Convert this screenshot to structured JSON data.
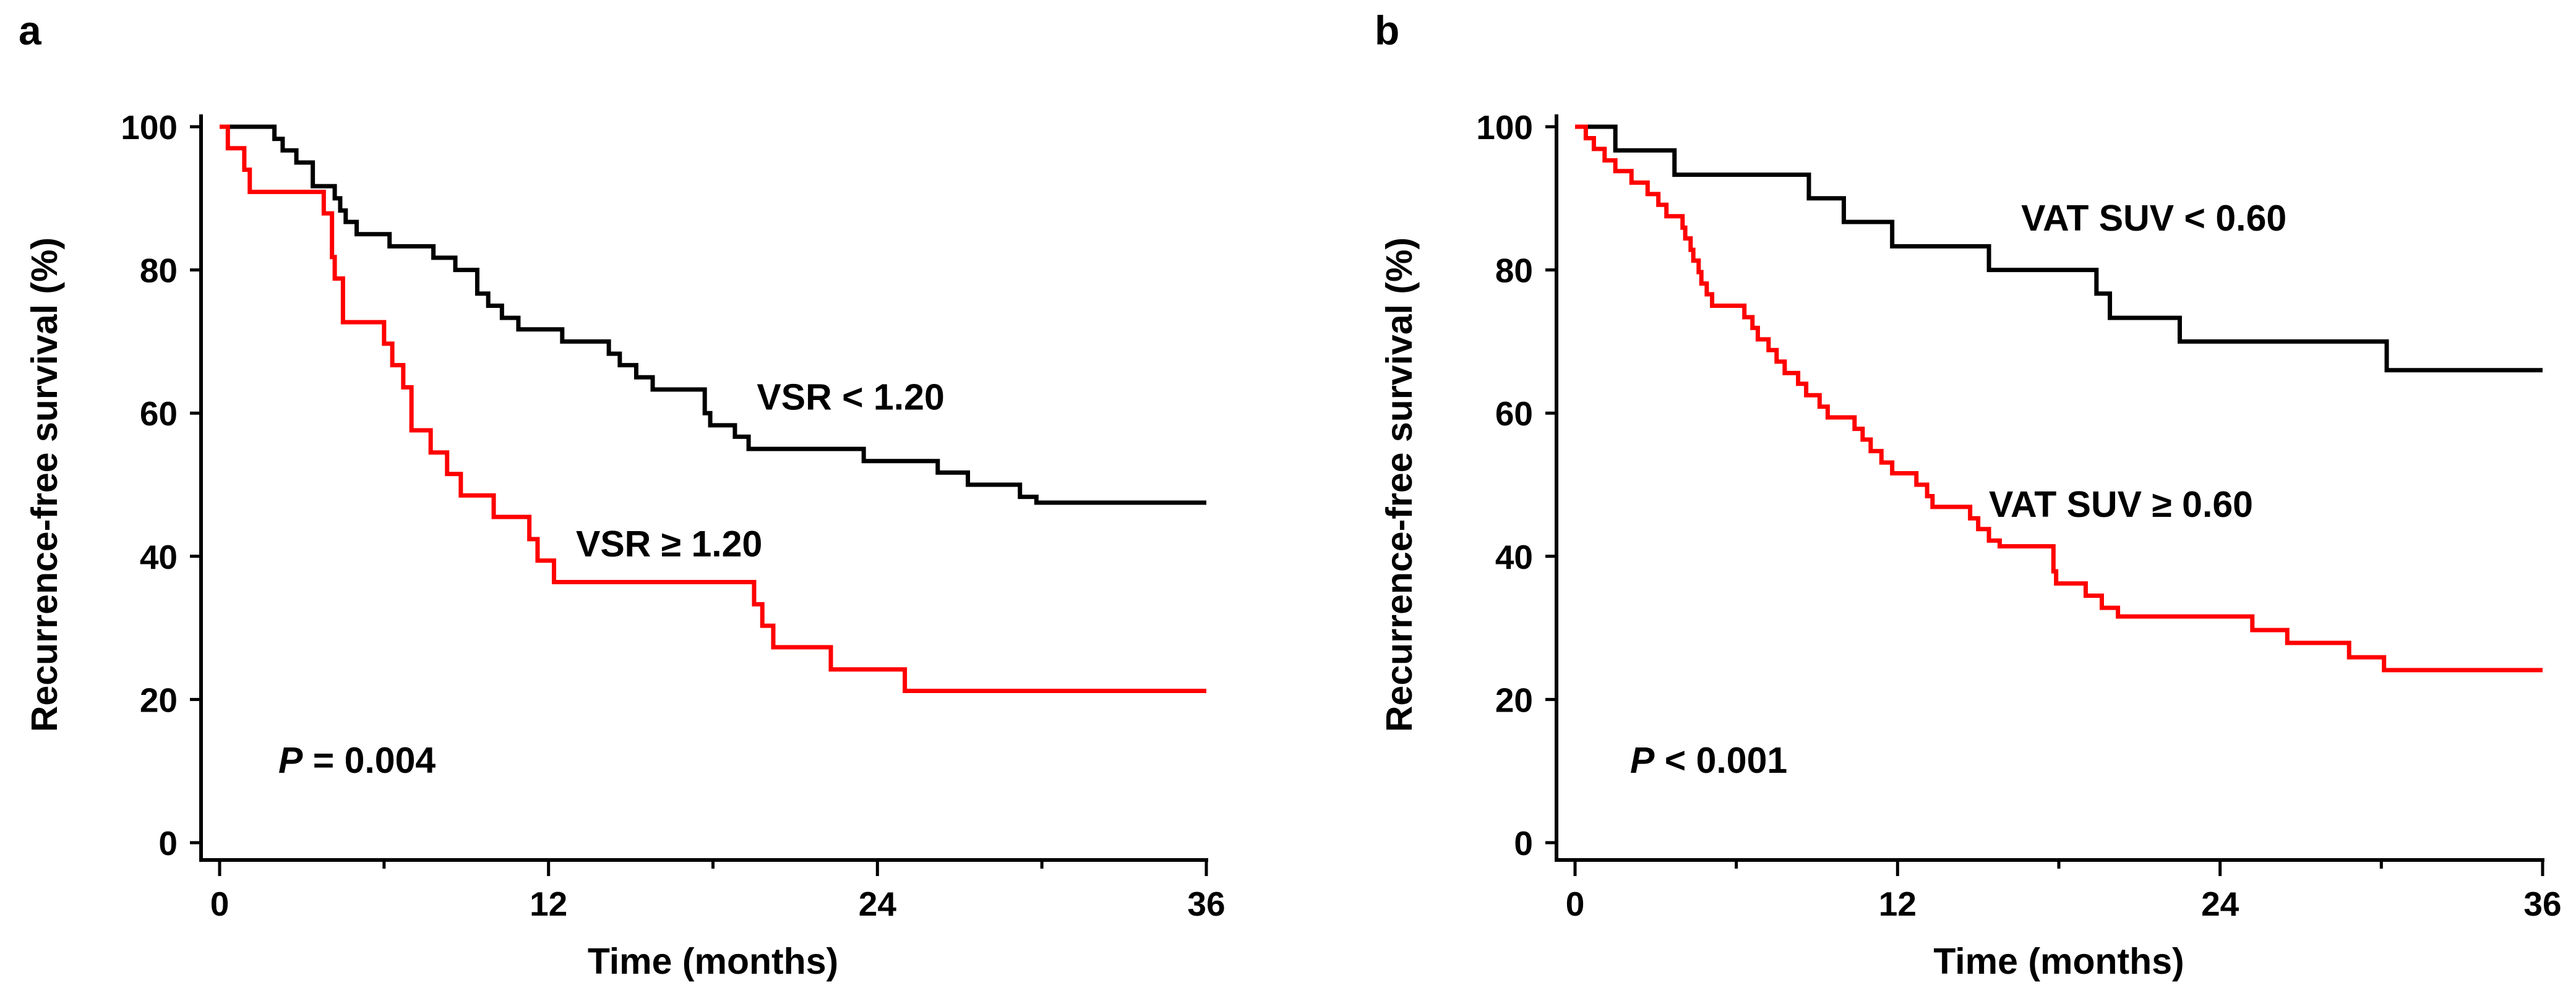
{
  "chart_data": [
    {
      "type": "line",
      "panel_label": "a",
      "title": "",
      "xlabel": "Time (months)",
      "ylabel": "Recurrence-free survival (%)",
      "xlim": [
        0,
        36
      ],
      "ylim": [
        0,
        100
      ],
      "xticks": [
        0,
        12,
        24,
        36
      ],
      "yticks": [
        0,
        20,
        40,
        60,
        80,
        100
      ],
      "grid": false,
      "p_value_label": "P",
      "p_value_text": " = 0.004",
      "series": [
        {
          "name": "VSR < 1.20",
          "color": "#000000",
          "points": [
            [
              0,
              100
            ],
            [
              1.7,
              100
            ],
            [
              2.0,
              98.3
            ],
            [
              2.3,
              96.7
            ],
            [
              2.8,
              95.0
            ],
            [
              3.4,
              91.7
            ],
            [
              4.2,
              90.0
            ],
            [
              4.4,
              88.3
            ],
            [
              4.6,
              86.7
            ],
            [
              5.0,
              85.0
            ],
            [
              6.2,
              83.3
            ],
            [
              7.8,
              81.7
            ],
            [
              8.6,
              80.0
            ],
            [
              9.4,
              76.7
            ],
            [
              9.8,
              75.0
            ],
            [
              10.3,
              73.3
            ],
            [
              10.9,
              71.7
            ],
            [
              12.5,
              70.0
            ],
            [
              14.2,
              68.3
            ],
            [
              14.6,
              66.7
            ],
            [
              15.2,
              65.0
            ],
            [
              15.8,
              63.3
            ],
            [
              17.7,
              60.0
            ],
            [
              17.9,
              58.3
            ],
            [
              18.8,
              56.7
            ],
            [
              19.3,
              55.0
            ],
            [
              23.5,
              53.3
            ],
            [
              26.2,
              51.7
            ],
            [
              27.3,
              50.0
            ],
            [
              29.2,
              48.3
            ],
            [
              29.8,
              47.5
            ],
            [
              36,
              47.5
            ]
          ]
        },
        {
          "name": "VSR ≥ 1.20",
          "color": "#ff0000",
          "points": [
            [
              0,
              100
            ],
            [
              0.3,
              97.0
            ],
            [
              0.9,
              94.0
            ],
            [
              1.1,
              90.9
            ],
            [
              3.8,
              87.9
            ],
            [
              4.1,
              81.8
            ],
            [
              4.2,
              78.8
            ],
            [
              4.5,
              72.7
            ],
            [
              6.0,
              69.7
            ],
            [
              6.3,
              66.7
            ],
            [
              6.7,
              63.6
            ],
            [
              7.0,
              57.6
            ],
            [
              7.7,
              54.5
            ],
            [
              8.3,
              51.5
            ],
            [
              8.8,
              48.5
            ],
            [
              10.0,
              45.5
            ],
            [
              11.3,
              42.4
            ],
            [
              11.6,
              39.4
            ],
            [
              12.2,
              36.4
            ],
            [
              19.5,
              33.3
            ],
            [
              19.8,
              30.3
            ],
            [
              20.2,
              27.3
            ],
            [
              22.3,
              24.2
            ],
            [
              25.0,
              21.2
            ],
            [
              36,
              21.2
            ]
          ]
        }
      ],
      "annotations": [
        {
          "text": "VSR < 1.20",
          "x": 19.6,
          "y": 60.5
        },
        {
          "text": "VSR ≥ 1.20",
          "x": 13.0,
          "y": 40.0
        }
      ]
    },
    {
      "type": "line",
      "panel_label": "b",
      "title": "",
      "xlabel": "Time (months)",
      "ylabel": "Recurrence-free survival (%)",
      "xlim": [
        0,
        36
      ],
      "ylim": [
        0,
        100
      ],
      "xticks": [
        0,
        12,
        24,
        36
      ],
      "yticks": [
        0,
        20,
        40,
        60,
        80,
        100
      ],
      "grid": false,
      "p_value_label": "P",
      "p_value_text": " < 0.001",
      "series": [
        {
          "name": "VAT SUV < 0.60",
          "color": "#000000",
          "points": [
            [
              0,
              100
            ],
            [
              1.3,
              100
            ],
            [
              1.5,
              96.7
            ],
            [
              3.7,
              93.3
            ],
            [
              8.7,
              90.0
            ],
            [
              10.0,
              86.7
            ],
            [
              11.8,
              83.3
            ],
            [
              15.4,
              80.0
            ],
            [
              19.4,
              76.7
            ],
            [
              19.9,
              73.3
            ],
            [
              22.5,
              70.0
            ],
            [
              30.2,
              66.0
            ],
            [
              36,
              66.0
            ]
          ]
        },
        {
          "name": "VAT SUV ≥ 0.60",
          "color": "#ff0000",
          "points": [
            [
              0,
              100
            ],
            [
              0.4,
              98.4
            ],
            [
              0.7,
              96.9
            ],
            [
              1.1,
              95.3
            ],
            [
              1.5,
              93.8
            ],
            [
              2.1,
              92.2
            ],
            [
              2.7,
              90.6
            ],
            [
              3.1,
              89.1
            ],
            [
              3.4,
              87.5
            ],
            [
              4.0,
              85.9
            ],
            [
              4.1,
              84.4
            ],
            [
              4.3,
              82.8
            ],
            [
              4.4,
              81.3
            ],
            [
              4.6,
              79.7
            ],
            [
              4.7,
              78.1
            ],
            [
              4.9,
              76.6
            ],
            [
              5.1,
              75.0
            ],
            [
              6.3,
              73.4
            ],
            [
              6.6,
              71.9
            ],
            [
              6.8,
              70.3
            ],
            [
              7.2,
              68.8
            ],
            [
              7.5,
              67.2
            ],
            [
              7.8,
              65.6
            ],
            [
              8.3,
              64.1
            ],
            [
              8.6,
              62.5
            ],
            [
              9.1,
              60.9
            ],
            [
              9.4,
              59.4
            ],
            [
              10.4,
              57.8
            ],
            [
              10.7,
              56.3
            ],
            [
              11.0,
              54.7
            ],
            [
              11.4,
              53.1
            ],
            [
              11.8,
              51.6
            ],
            [
              12.7,
              50.0
            ],
            [
              13.1,
              48.4
            ],
            [
              13.3,
              46.9
            ],
            [
              14.7,
              45.3
            ],
            [
              15.0,
              43.8
            ],
            [
              15.4,
              42.2
            ],
            [
              15.8,
              41.4
            ],
            [
              17.8,
              37.9
            ],
            [
              17.9,
              36.2
            ],
            [
              19.0,
              34.5
            ],
            [
              19.6,
              32.8
            ],
            [
              20.2,
              31.6
            ],
            [
              25.2,
              29.7
            ],
            [
              26.5,
              27.9
            ],
            [
              28.8,
              25.9
            ],
            [
              30.1,
              24.1
            ],
            [
              36,
              24.1
            ]
          ]
        }
      ],
      "annotations": [
        {
          "text": "VAT SUV < 0.60",
          "x": 16.6,
          "y": 85.5
        },
        {
          "text": "VAT SUV ≥ 0.60",
          "x": 15.4,
          "y": 45.5
        }
      ]
    }
  ]
}
